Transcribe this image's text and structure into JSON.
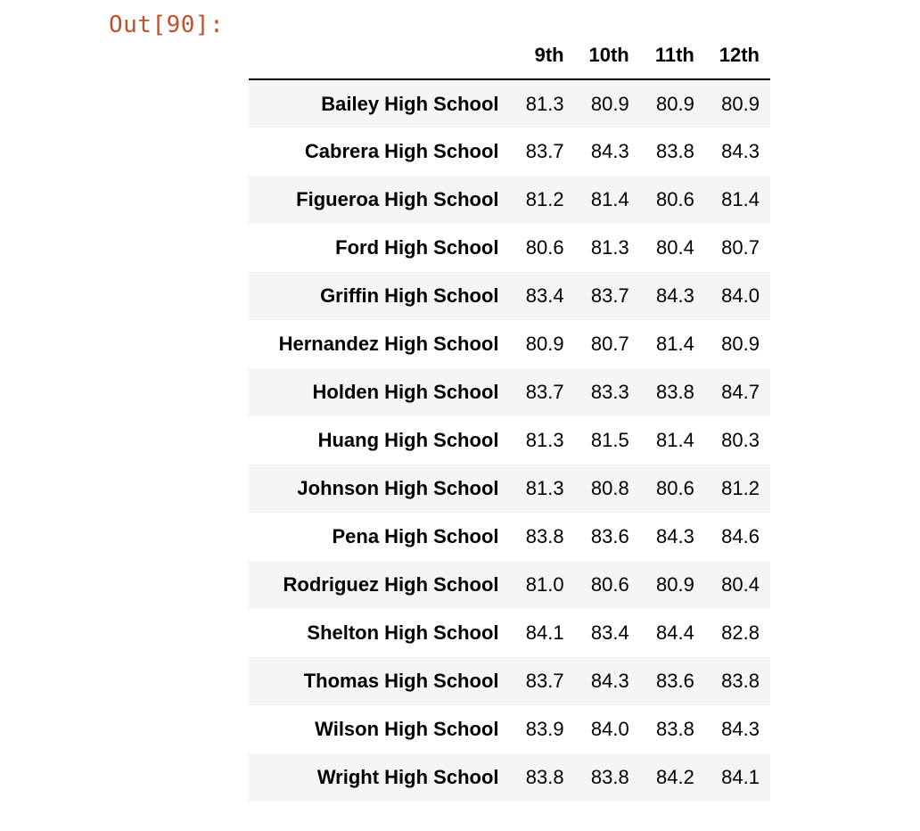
{
  "cell": {
    "prompt": "Out[90]:"
  },
  "table": {
    "index_header": "",
    "columns": [
      "9th",
      "10th",
      "11th",
      "12th"
    ],
    "rows": [
      {
        "school": "Bailey High School",
        "values": [
          "81.3",
          "80.9",
          "80.9",
          "80.9"
        ]
      },
      {
        "school": "Cabrera High School",
        "values": [
          "83.7",
          "84.3",
          "83.8",
          "84.3"
        ]
      },
      {
        "school": "Figueroa High School",
        "values": [
          "81.2",
          "81.4",
          "80.6",
          "81.4"
        ]
      },
      {
        "school": "Ford High School",
        "values": [
          "80.6",
          "81.3",
          "80.4",
          "80.7"
        ]
      },
      {
        "school": "Griffin High School",
        "values": [
          "83.4",
          "83.7",
          "84.3",
          "84.0"
        ]
      },
      {
        "school": "Hernandez High School",
        "values": [
          "80.9",
          "80.7",
          "81.4",
          "80.9"
        ]
      },
      {
        "school": "Holden High School",
        "values": [
          "83.7",
          "83.3",
          "83.8",
          "84.7"
        ]
      },
      {
        "school": "Huang High School",
        "values": [
          "81.3",
          "81.5",
          "81.4",
          "80.3"
        ]
      },
      {
        "school": "Johnson High School",
        "values": [
          "81.3",
          "80.8",
          "80.6",
          "81.2"
        ]
      },
      {
        "school": "Pena High School",
        "values": [
          "83.8",
          "83.6",
          "84.3",
          "84.6"
        ]
      },
      {
        "school": "Rodriguez High School",
        "values": [
          "81.0",
          "80.6",
          "80.9",
          "80.4"
        ]
      },
      {
        "school": "Shelton High School",
        "values": [
          "84.1",
          "83.4",
          "84.4",
          "82.8"
        ]
      },
      {
        "school": "Thomas High School",
        "values": [
          "83.7",
          "84.3",
          "83.6",
          "83.8"
        ]
      },
      {
        "school": "Wilson High School",
        "values": [
          "83.9",
          "84.0",
          "83.8",
          "84.3"
        ]
      },
      {
        "school": "Wright High School",
        "values": [
          "83.8",
          "83.8",
          "84.2",
          "84.1"
        ]
      }
    ]
  },
  "colors": {
    "prompt": "#c0502e",
    "stripe": "#f5f5f5",
    "text": "#000000"
  }
}
